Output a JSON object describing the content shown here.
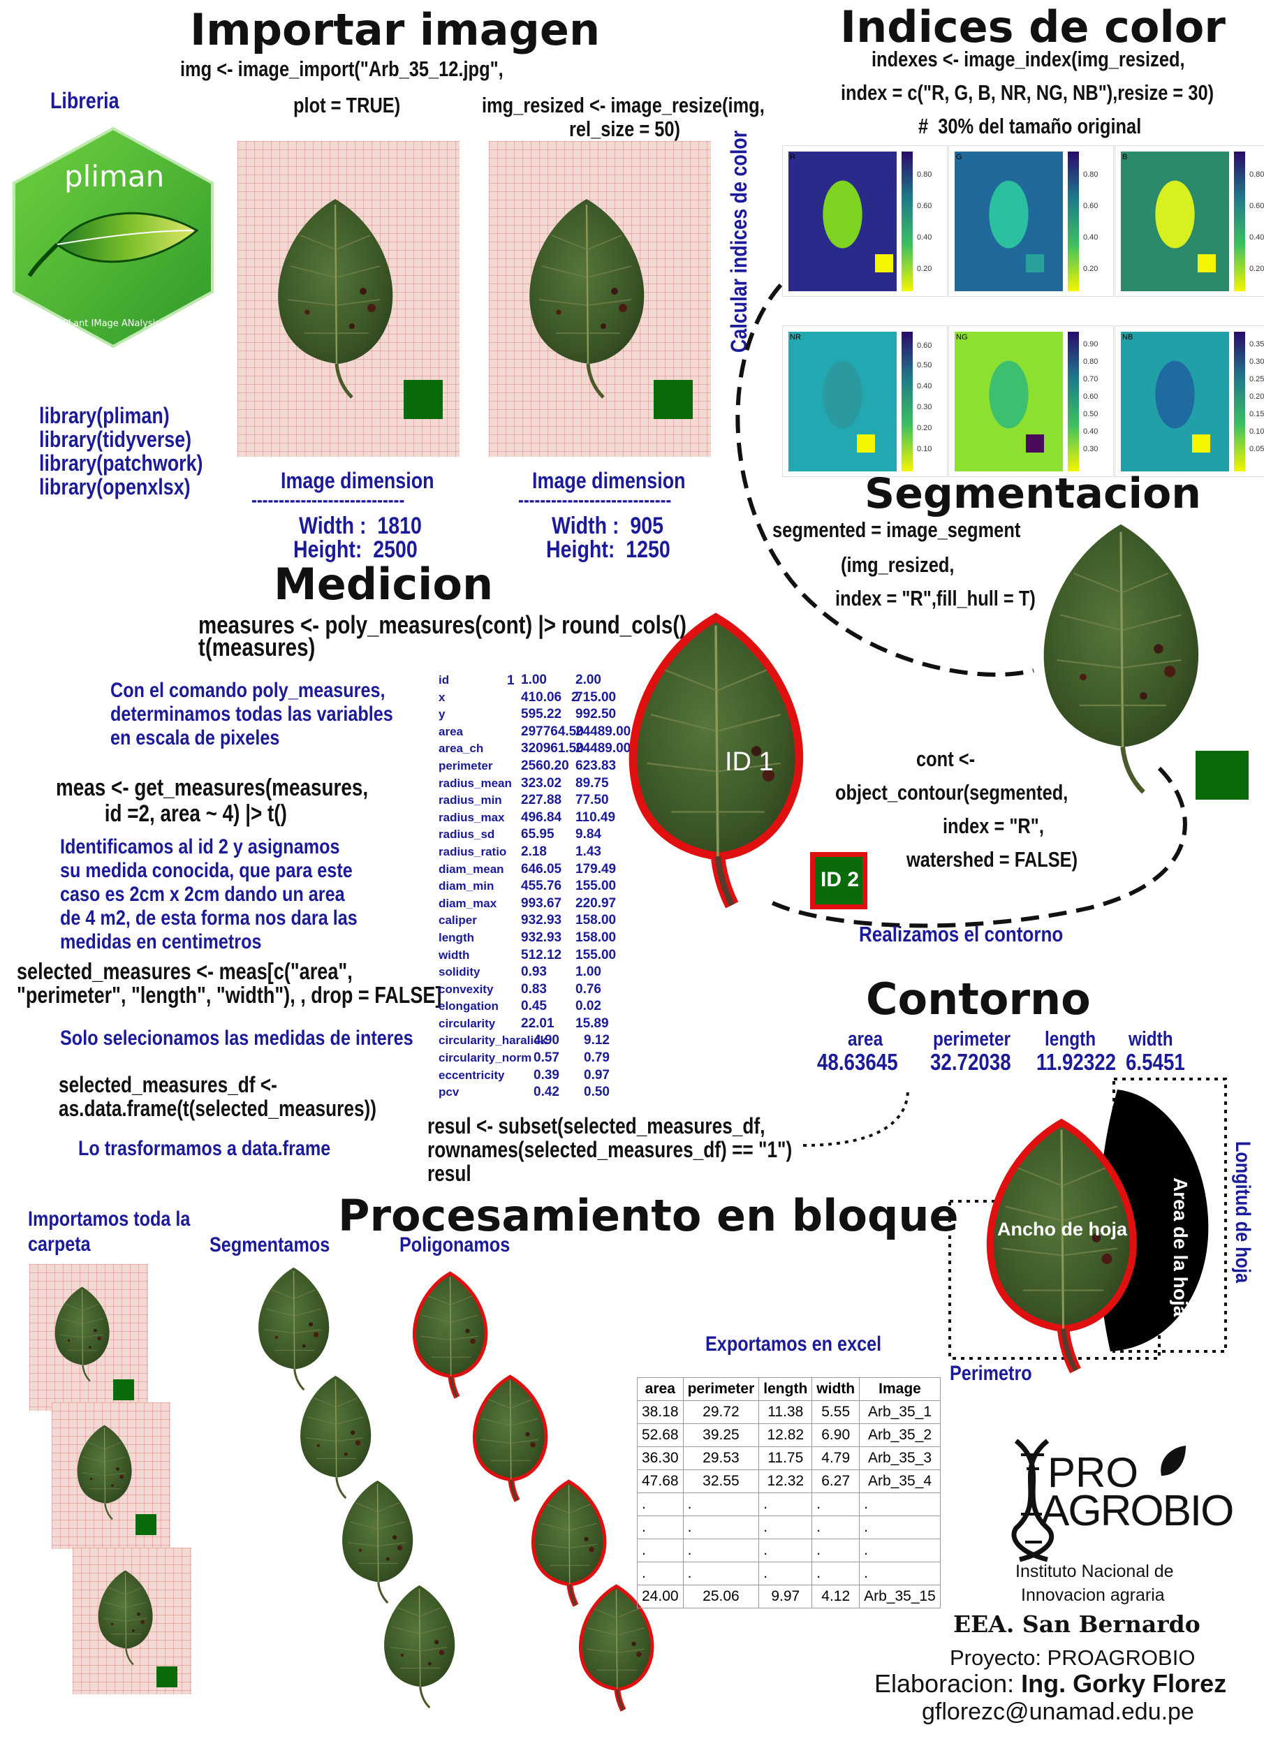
{
  "importar": {
    "title": "Importar imagen",
    "code1": "img <- image_import(\"Arb_35_12.jpg\",",
    "code2": "plot = TRUE)",
    "code3": "img_resized <- image_resize(img,",
    "code4": "rel_size = 50)",
    "dim_label_1": "Image dimension",
    "dim_sep": "----------------------------",
    "width_1": "Width :  1810",
    "height_1": "Height:  2500",
    "dim_label_2": "Image dimension",
    "width_2": "Width :  905",
    "height_2": "Height:  1250"
  },
  "libreria": {
    "title": "Libreria",
    "logo_name": "pliman",
    "logo_sub": "PLant IMage ANalysis",
    "lines": [
      "library(pliman)",
      "library(tidyverse)",
      "library(patchwork)",
      "library(openxlsx)"
    ]
  },
  "indices": {
    "title": "Indices de color",
    "code1": "indexes <- image_index(img_resized,",
    "code2": "index = c(\"R, G, B, NR, NG, NB\"),resize = 30)",
    "code3": "#  30% del tamaño original",
    "side_label": "Calcular indices de color",
    "panels": [
      {
        "label": "R",
        "ticks": [
          "0.80",
          "0.60",
          "0.40",
          "0.20"
        ]
      },
      {
        "label": "G",
        "ticks": [
          "0.80",
          "0.60",
          "0.40",
          "0.20"
        ]
      },
      {
        "label": "B",
        "ticks": [
          "0.80",
          "0.60",
          "0.40",
          "0.20"
        ]
      },
      {
        "label": "NR",
        "ticks": [
          "0.60",
          "0.50",
          "0.40",
          "0.30",
          "0.20",
          "0.10"
        ]
      },
      {
        "label": "NG",
        "ticks": [
          "0.90",
          "0.80",
          "0.70",
          "0.60",
          "0.50",
          "0.40",
          "0.30"
        ]
      },
      {
        "label": "NB",
        "ticks": [
          "0.35",
          "0.30",
          "0.25",
          "0.20",
          "0.15",
          "0.10",
          "0.05"
        ]
      }
    ]
  },
  "segmentacion": {
    "title": "Segmentacion",
    "code1": "segmented = image_segment",
    "code2": "(img_resized,",
    "code3": "index = \"R\",fill_hull = T)",
    "contour1": "cont <-",
    "contour2": "object_contour(segmented,",
    "contour3": "index = \"R\",",
    "contour4": "watershed = FALSE)",
    "note": "Realizamos el contorno"
  },
  "medicion": {
    "title": "Medicion",
    "code1": "measures <- poly_measures(cont) |> round_cols()",
    "code2": "t(measures)",
    "note1": "Con el comando poly_measures,\ndeterminamos todas las variables\nen escala de pixeles",
    "code3": "meas <- get_measures(measures,\n         id =2, area ~ 4) |> t()",
    "note2": "Identificamos al id 2 y asignamos\nsu medida conocida, que para este\ncaso es 2cm x 2cm dando un area\nde 4 m2, de esta forma nos dara las\nmedidas en centimetros",
    "code4": "selected_measures <- meas[c(\"area\",\n\"perimeter\", \"length\", \"width\"), , drop = FALSE]",
    "note3": "Solo selecionamos las medidas de interes",
    "code5": "selected_measures_df <-\nas.data.frame(t(selected_measures))",
    "note4": "Lo trasformamos a data.frame",
    "code6": "resul <- subset(selected_measures_df,\nrownames(selected_measures_df) == \"1\")\nresul",
    "id1": "ID 1",
    "id2": "ID 2",
    "table_header": [
      "",
      "1",
      "2"
    ],
    "table_rows": [
      [
        "id",
        "1.00",
        "2.00"
      ],
      [
        "x",
        "410.06",
        "715.00"
      ],
      [
        "y",
        "595.22",
        "992.50"
      ],
      [
        "area",
        "297764.50",
        "24489.00"
      ],
      [
        "area_ch",
        "320961.50",
        "24489.00"
      ],
      [
        "perimeter",
        "2560.20",
        "623.83"
      ],
      [
        "radius_mean",
        "323.02",
        "89.75"
      ],
      [
        "radius_min",
        "227.88",
        "77.50"
      ],
      [
        "radius_max",
        "496.84",
        "110.49"
      ],
      [
        "radius_sd",
        "65.95",
        "9.84"
      ],
      [
        "radius_ratio",
        "2.18",
        "1.43"
      ],
      [
        "diam_mean",
        "646.05",
        "179.49"
      ],
      [
        "diam_min",
        "455.76",
        "155.00"
      ],
      [
        "diam_max",
        "993.67",
        "220.97"
      ],
      [
        "caliper",
        "932.93",
        "158.00"
      ],
      [
        "length",
        "932.93",
        "158.00"
      ],
      [
        "width",
        "512.12",
        "155.00"
      ],
      [
        "solidity",
        "0.93",
        "1.00"
      ],
      [
        "convexity",
        "0.83",
        "0.76"
      ],
      [
        "elongation",
        "0.45",
        "0.02"
      ],
      [
        "circularity",
        "22.01",
        "15.89"
      ],
      [
        "circularity_haralick",
        "4.90",
        "9.12"
      ],
      [
        "circularity_norm",
        "0.57",
        "0.79"
      ],
      [
        "eccentricity",
        "0.39",
        "0.97"
      ],
      [
        "pcv",
        "0.42",
        "0.50"
      ]
    ]
  },
  "contorno": {
    "title": "Contorno",
    "labels": [
      "area",
      "perimeter",
      "length",
      "width"
    ],
    "values": [
      "48.63645",
      "32.72038",
      "11.92322",
      "6.5451"
    ],
    "ancho": "Ancho de hoja",
    "area_hoja": "Area de la hoja",
    "longitud": "Longitud de hoja",
    "perimetro": "Perimetro"
  },
  "bloque": {
    "title": "Procesamiento en bloque",
    "step1": "Importamos toda la\ncarpeta",
    "step2": "Segmentamos",
    "step3": "Poligonamos",
    "step4": "Exportamos en excel",
    "table_header": [
      "area",
      "perimeter",
      "length",
      "width",
      "Image"
    ],
    "table_rows": [
      [
        "38.18",
        "29.72",
        "11.38",
        "5.55",
        "Arb_35_1"
      ],
      [
        "52.68",
        "39.25",
        "12.82",
        "6.90",
        "Arb_35_2"
      ],
      [
        "36.30",
        "29.53",
        "11.75",
        "4.79",
        "Arb_35_3"
      ],
      [
        "47.68",
        "32.55",
        "12.32",
        "6.27",
        "Arb_35_4"
      ],
      [
        ".",
        ".",
        ".",
        ".",
        "."
      ],
      [
        ".",
        ".",
        ".",
        ".",
        "."
      ],
      [
        ".",
        ".",
        ".",
        ".",
        "."
      ],
      [
        ".",
        ".",
        ".",
        ".",
        "."
      ],
      [
        "24.00",
        "25.06",
        "9.97",
        "4.12",
        "Arb_35_15"
      ]
    ]
  },
  "footer": {
    "logo_pro": "PRO",
    "logo_agrobio": "AGROBIO",
    "inst1": "Instituto Nacional de",
    "inst2": "Innovacion agraria",
    "eea": "EEA. San Bernardo",
    "proyecto": "Proyecto: PROAGROBIO",
    "elab_label": "Elaboracion: ",
    "elab_name": "Ing. Gorky Florez",
    "email": "gflorezc@unamad.edu.pe"
  },
  "colors": {
    "title": "#111111",
    "blue": "#1b1b9a",
    "leaf": "#3f5a2a",
    "marker": "#0a6b0a",
    "red": "#e01010"
  }
}
